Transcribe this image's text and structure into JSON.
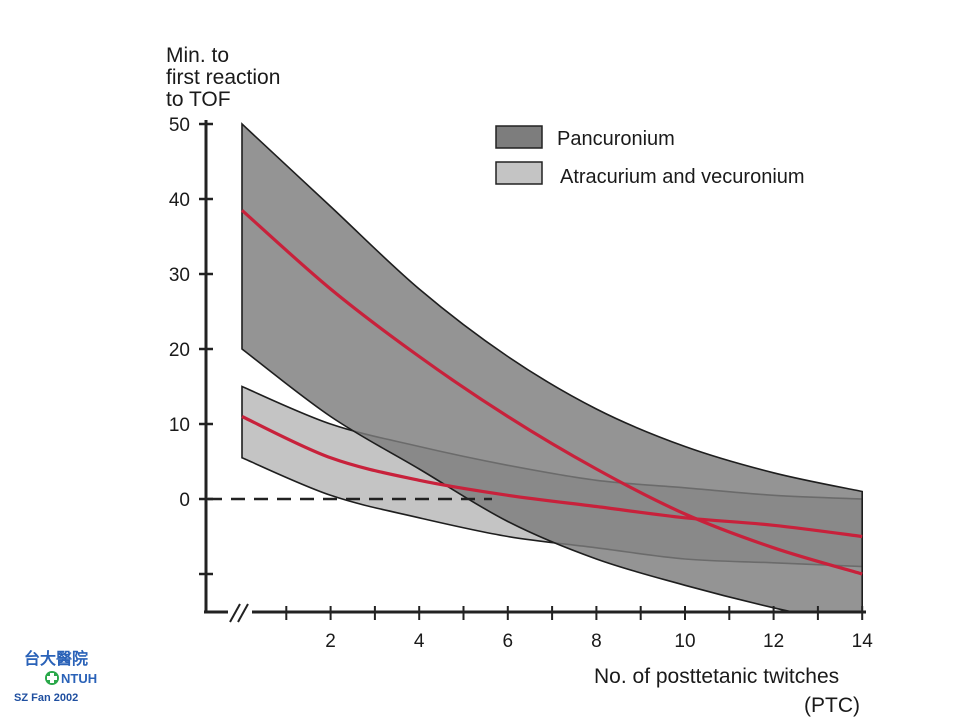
{
  "colors": {
    "pancuronium_band": "#7d7d7d",
    "atracurium_band": "#c4c4c4",
    "overlap": "#505050",
    "mean_line": "#c8213b",
    "axis": "#222222",
    "logo_blue": "#2a62b8"
  },
  "logo": {
    "chinese": "台大醫院",
    "text": "NTUH"
  },
  "credit": "SZ Fan 2002",
  "chart_data": {
    "type": "line",
    "title": "",
    "ylabel_lines": [
      "Min. to",
      "first reaction",
      "to TOF"
    ],
    "xlabel": "No. of posttetanic twitches",
    "xlabel_unit": "(PTC)",
    "xlim": [
      0,
      14
    ],
    "ylim": [
      -15,
      50
    ],
    "x_ticks": [
      2,
      4,
      6,
      8,
      10,
      12,
      14
    ],
    "y_ticks": [
      0,
      10,
      20,
      30,
      40,
      50
    ],
    "y_tick_minor": [
      -10
    ],
    "grid": false,
    "axis_break": true,
    "zero_reference_line": true,
    "legend_position": "top-right",
    "legend": [
      "Pancuronium",
      "Atracurium and vecuronium"
    ],
    "series": [
      {
        "name": "Pancuronium",
        "x": [
          0,
          2,
          4,
          6,
          8,
          10,
          12,
          14
        ],
        "band_upper": [
          50,
          39,
          28,
          19,
          12,
          7,
          3.5,
          1
        ],
        "band_lower": [
          20,
          11,
          4,
          -3,
          -8,
          -11.5,
          -14.5,
          -17
        ],
        "mean": [
          38.5,
          28,
          19,
          11,
          4,
          -2,
          -6.5,
          -10
        ]
      },
      {
        "name": "Atracurium and vecuronium",
        "x": [
          0,
          2,
          4,
          6,
          8,
          10,
          12,
          14
        ],
        "band_upper": [
          15,
          10,
          7,
          4.5,
          2.5,
          1.5,
          0.5,
          0
        ],
        "band_lower": [
          5.5,
          0.5,
          -2.5,
          -5,
          -6.5,
          -8,
          -8.5,
          -9
        ],
        "mean": [
          11,
          5.5,
          2.5,
          0.5,
          -1,
          -2.5,
          -3.5,
          -5
        ]
      }
    ]
  }
}
